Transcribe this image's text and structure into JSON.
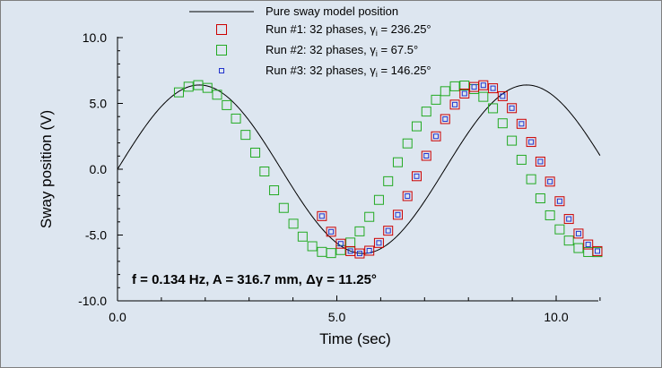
{
  "chart_data": {
    "type": "line",
    "title": "",
    "xlabel": "Time (sec)",
    "ylabel": "Sway position (V)",
    "xlim": [
      0,
      11
    ],
    "ylim": [
      -10,
      10
    ],
    "xticks": [
      "0.0",
      "5.0",
      "10.0"
    ],
    "yticks": [
      "10.0",
      "5.0",
      "0.0",
      "-5.0",
      "-10.0"
    ],
    "grid": false,
    "legend_position": "top-center",
    "annotation": "f = 0.134 Hz, A = 316.7 mm, Δγ = 11.25°",
    "model": {
      "name": "Pure sway model position",
      "amplitude": 6.4,
      "frequency_hz": 0.134,
      "t_end": 11.0,
      "color": "#000000"
    },
    "series": [
      {
        "name": "Run #1:  32 phases, γ",
        "legend_sub": "i",
        "legend_tail": " = 236.25°",
        "color": "#cc0000",
        "marker": "large-square",
        "x": [
          4.66,
          4.87,
          5.09,
          5.31,
          5.52,
          5.74,
          5.96,
          6.17,
          6.39,
          6.61,
          6.82,
          7.04,
          7.26,
          7.47,
          7.69,
          7.91,
          8.13,
          8.34,
          8.56,
          8.78,
          8.99,
          9.21,
          9.43,
          9.64,
          9.86,
          10.08,
          10.29,
          10.51,
          10.73,
          10.94
        ],
        "y": [
          -3.56,
          -4.75,
          -5.66,
          -6.22,
          -6.4,
          -6.19,
          -5.6,
          -4.67,
          -3.46,
          -2.04,
          -0.53,
          1.02,
          2.5,
          3.81,
          4.91,
          5.75,
          6.25,
          6.38,
          6.15,
          5.55,
          4.64,
          3.45,
          2.07,
          0.58,
          -0.94,
          -2.43,
          -3.78,
          -4.89,
          -5.72,
          -6.22
        ]
      },
      {
        "name": "Run #2:  32 phases, γ",
        "legend_sub": "i",
        "legend_tail": " = 67.5°",
        "color": "#22aa22",
        "marker": "large-square",
        "x": [
          1.4,
          1.62,
          1.84,
          2.05,
          2.27,
          2.49,
          2.7,
          2.92,
          3.14,
          3.35,
          3.57,
          3.79,
          4.01,
          4.22,
          4.44,
          4.66,
          4.87,
          5.09,
          5.31,
          5.52,
          5.74,
          5.96,
          6.17,
          6.39,
          6.61,
          6.82,
          7.04,
          7.26,
          7.47,
          7.69,
          7.91,
          8.13,
          8.34,
          8.56,
          8.78,
          8.99,
          9.21,
          9.43,
          9.64,
          9.86,
          10.08,
          10.29,
          10.51,
          10.73,
          10.94
        ],
        "y": [
          5.84,
          6.27,
          6.39,
          6.18,
          5.66,
          4.87,
          3.85,
          2.61,
          1.26,
          -0.17,
          -1.6,
          -2.94,
          -4.14,
          -5.12,
          -5.85,
          -6.28,
          -6.37,
          -6.14,
          -5.57,
          -4.72,
          -3.62,
          -2.33,
          -0.91,
          0.53,
          1.96,
          3.26,
          4.38,
          5.28,
          5.93,
          6.3,
          6.36,
          6.09,
          5.5,
          4.63,
          3.49,
          2.17,
          0.72,
          -0.76,
          -2.21,
          -3.5,
          -4.57,
          -5.42,
          -5.99,
          -6.29,
          -6.3
        ]
      },
      {
        "name": "Run #3:  32 phases, γ",
        "legend_sub": "i",
        "legend_tail": " = 146.25°",
        "color": "#2233cc",
        "marker": "small-square",
        "x": [
          4.66,
          4.87,
          5.09,
          5.31,
          5.52,
          5.74,
          5.96,
          6.17,
          6.39,
          6.61,
          6.82,
          7.04,
          7.26,
          7.47,
          7.69,
          7.91,
          8.13,
          8.34,
          8.56,
          8.78,
          8.99,
          9.21,
          9.43,
          9.64,
          9.86,
          10.08,
          10.29,
          10.51,
          10.73,
          10.94
        ],
        "y": [
          -3.56,
          -4.75,
          -5.66,
          -6.22,
          -6.4,
          -6.19,
          -5.6,
          -4.67,
          -3.46,
          -2.04,
          -0.53,
          1.02,
          2.5,
          3.81,
          4.91,
          5.75,
          6.25,
          6.38,
          6.15,
          5.55,
          4.64,
          3.45,
          2.07,
          0.58,
          -0.94,
          -2.43,
          -3.78,
          -4.89,
          -5.72,
          -6.22
        ]
      }
    ]
  }
}
